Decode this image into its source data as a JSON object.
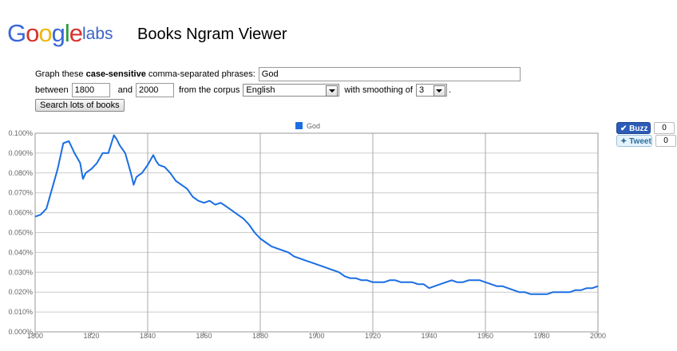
{
  "header": {
    "logo_google": "Google",
    "logo_labs": "labs",
    "title": "Books Ngram Viewer"
  },
  "form": {
    "graph_label_pre": "Graph these ",
    "graph_label_bold": "case-sensitive",
    "graph_label_post": " comma-separated phrases:",
    "phrases_value": "God",
    "between_label": "between",
    "start_year": "1800",
    "and_label": "and",
    "end_year": "2000",
    "corpus_label": "from the corpus",
    "corpus_value": "English",
    "smoothing_label": "with smoothing of",
    "smoothing_value": "3",
    "period": ".",
    "search_button": "Search lots of books"
  },
  "share": {
    "buzz_label": "Buzz",
    "buzz_count": "0",
    "tweet_label": "Tweet",
    "tweet_count": "0"
  },
  "colors": {
    "series": "#1a6ee2",
    "grid": "#cccccc",
    "axis_text": "#666666"
  },
  "chart_data": {
    "type": "line",
    "x_ticks": [
      "1800",
      "1820",
      "1840",
      "1860",
      "1880",
      "1900",
      "1920",
      "1940",
      "1960",
      "1980",
      "2000"
    ],
    "y_ticks": [
      "0.000%",
      "0.010%",
      "0.020%",
      "0.030%",
      "0.040%",
      "0.050%",
      "0.060%",
      "0.070%",
      "0.080%",
      "0.090%",
      "0.100%"
    ],
    "xlim": [
      1800,
      2000
    ],
    "ylim": [
      0,
      0.1
    ],
    "grid": true,
    "legend": "top-center",
    "series": [
      {
        "name": "God",
        "color": "#1a6ee2",
        "x": [
          1800,
          1802,
          1804,
          1806,
          1808,
          1810,
          1812,
          1814,
          1816,
          1817,
          1818,
          1820,
          1822,
          1824,
          1826,
          1828,
          1829,
          1830,
          1832,
          1834,
          1835,
          1836,
          1838,
          1840,
          1842,
          1843,
          1844,
          1846,
          1848,
          1850,
          1852,
          1854,
          1856,
          1858,
          1860,
          1862,
          1864,
          1866,
          1868,
          1870,
          1872,
          1874,
          1876,
          1878,
          1880,
          1882,
          1884,
          1886,
          1888,
          1890,
          1892,
          1894,
          1896,
          1898,
          1900,
          1902,
          1904,
          1906,
          1908,
          1910,
          1912,
          1914,
          1916,
          1918,
          1920,
          1922,
          1924,
          1926,
          1928,
          1930,
          1932,
          1934,
          1936,
          1938,
          1940,
          1942,
          1944,
          1946,
          1948,
          1950,
          1952,
          1954,
          1956,
          1958,
          1960,
          1962,
          1964,
          1966,
          1968,
          1970,
          1972,
          1974,
          1976,
          1978,
          1980,
          1982,
          1984,
          1986,
          1988,
          1990,
          1992,
          1994,
          1996,
          1998,
          2000
        ],
        "values": [
          0.058,
          0.059,
          0.062,
          0.072,
          0.082,
          0.095,
          0.096,
          0.09,
          0.085,
          0.077,
          0.08,
          0.082,
          0.085,
          0.09,
          0.09,
          0.099,
          0.097,
          0.094,
          0.09,
          0.08,
          0.074,
          0.078,
          0.08,
          0.084,
          0.089,
          0.086,
          0.084,
          0.083,
          0.08,
          0.076,
          0.074,
          0.072,
          0.068,
          0.066,
          0.065,
          0.066,
          0.064,
          0.065,
          0.063,
          0.061,
          0.059,
          0.057,
          0.054,
          0.05,
          0.047,
          0.045,
          0.043,
          0.042,
          0.041,
          0.04,
          0.038,
          0.037,
          0.036,
          0.035,
          0.034,
          0.033,
          0.032,
          0.031,
          0.03,
          0.028,
          0.027,
          0.027,
          0.026,
          0.026,
          0.025,
          0.025,
          0.025,
          0.026,
          0.026,
          0.025,
          0.025,
          0.025,
          0.024,
          0.024,
          0.022,
          0.023,
          0.024,
          0.025,
          0.026,
          0.025,
          0.025,
          0.026,
          0.026,
          0.026,
          0.025,
          0.024,
          0.023,
          0.023,
          0.022,
          0.021,
          0.02,
          0.02,
          0.019,
          0.019,
          0.019,
          0.019,
          0.02,
          0.02,
          0.02,
          0.02,
          0.021,
          0.021,
          0.022,
          0.022,
          0.023
        ]
      }
    ]
  }
}
